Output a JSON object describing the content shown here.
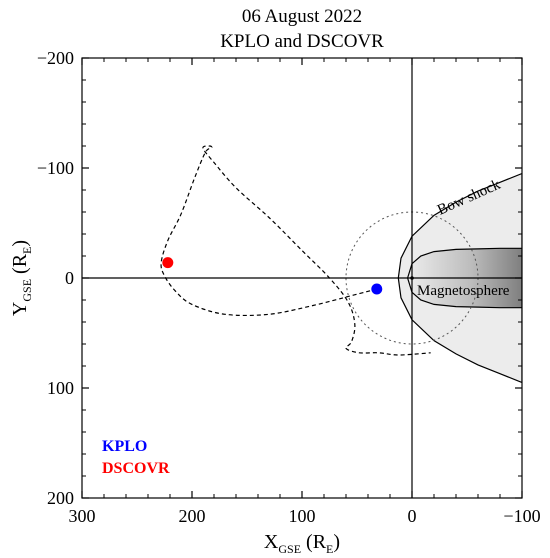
{
  "chart_data": {
    "type": "scatter",
    "title": "06 August 2022",
    "subtitle": "KPLO and DSCOVR",
    "xlabel": {
      "main": "X",
      "sub": "GSE",
      "unit_open": " (R",
      "unit_sub": "E",
      "unit_close": ")"
    },
    "ylabel": {
      "main": "Y",
      "sub": "GSE",
      "unit_open": " (R",
      "unit_sub": "E",
      "unit_close": ")"
    },
    "xlim": [
      300,
      -100
    ],
    "ylim": [
      -200,
      200
    ],
    "xticks": [
      300,
      200,
      100,
      0,
      -100
    ],
    "yticks": [
      -200,
      -100,
      0,
      100,
      200
    ],
    "xtick_labels": [
      "300",
      "200",
      "100",
      "0",
      "−100"
    ],
    "ytick_labels": [
      "−200",
      "−100",
      "0",
      "100",
      "200"
    ],
    "grid": false,
    "reference_lines": {
      "x": 0,
      "y": 0
    },
    "series": [
      {
        "name": "KPLO",
        "color": "#0000ff",
        "x": [
          32
        ],
        "y": [
          10
        ]
      },
      {
        "name": "DSCOVR",
        "color": "#ff0000",
        "x": [
          222
        ],
        "y": [
          -14
        ]
      }
    ],
    "trajectory": {
      "style": "dashed",
      "x": [
        32,
        55,
        90,
        130,
        170,
        200,
        215,
        225,
        228,
        222,
        210,
        198,
        188,
        183,
        182,
        184,
        190,
        180,
        160,
        130,
        100,
        75,
        58,
        52,
        55,
        60,
        48,
        30,
        12,
        -17
      ],
      "y": [
        10,
        16,
        25,
        33,
        33,
        24,
        12,
        -2,
        -14,
        -34,
        -58,
        -90,
        -114,
        -118,
        -119,
        -120,
        -118,
        -105,
        -82,
        -55,
        -25,
        0,
        22,
        42,
        58,
        64,
        68,
        68,
        70,
        68
      ]
    },
    "moon_orbit_circle": {
      "style": "dotted",
      "center": [
        0,
        0
      ],
      "radius": 60
    },
    "bow_shock": {
      "label": "Bow shock",
      "x": [
        -100,
        -80,
        -60,
        -40,
        -20,
        0,
        10,
        12.5,
        10,
        0,
        -20,
        -40,
        -60,
        -80,
        -100
      ],
      "y": [
        -95,
        -87,
        -79,
        -69,
        -57,
        -38,
        -18,
        0,
        18,
        38,
        57,
        69,
        79,
        87,
        95
      ]
    },
    "magnetosphere": {
      "label": "Magnetosphere",
      "x": [
        -100,
        -80,
        -60,
        -40,
        -20,
        -8,
        0,
        4,
        0,
        -8,
        -20,
        -40,
        -60,
        -80,
        -100
      ],
      "y": [
        -27,
        -27,
        -26.5,
        -26,
        -24,
        -20,
        -13,
        0,
        13,
        20,
        24,
        26,
        26.5,
        27,
        27
      ]
    },
    "legend": {
      "position": "bottom-left",
      "entries": [
        "KPLO",
        "DSCOVR"
      ]
    }
  }
}
